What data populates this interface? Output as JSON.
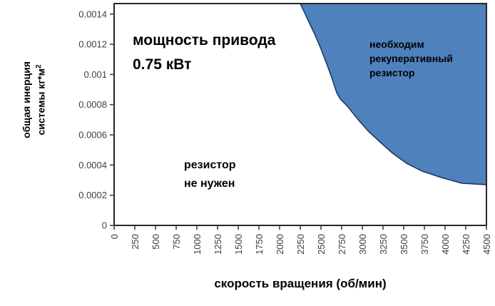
{
  "figure": {
    "title_line1": "мощность привода",
    "title_line2": "0.75 кВт",
    "region_resistor": {
      "line1": "необходим",
      "line2": "рекуперативный",
      "line3": "резистор"
    },
    "region_no_resistor": {
      "line1": "резистор",
      "line2": "не нужен"
    },
    "xlabel": "скорость вращения (об/мин)",
    "ylabel_line1": "общая инерция",
    "ylabel_line2": "системы кг*м",
    "ylabel_sup": "2"
  },
  "colors": {
    "region_fill": "#4f81bd",
    "region_stroke": "#1f3864",
    "frame": "#262626",
    "tick": "#404040",
    "tick_text": "#404040"
  },
  "chart_data": {
    "type": "area",
    "title": "мощность привода 0.75 кВт",
    "xlabel": "скорость вращения (об/мин)",
    "ylabel": "общая инерция системы кг*м^2",
    "xlim": [
      0,
      4500
    ],
    "ylim": [
      0,
      0.00147
    ],
    "x_ticks": [
      0,
      250,
      500,
      750,
      1000,
      1250,
      1500,
      1750,
      2000,
      2250,
      2500,
      2750,
      3000,
      3250,
      3500,
      3750,
      4000,
      4250,
      4500
    ],
    "y_ticks": [
      0,
      0.0002,
      0.0004,
      0.0006,
      0.0008,
      0.001,
      0.0012,
      0.0014
    ],
    "y_tick_labels": [
      "0",
      "0.0002",
      "0.0004",
      "0.0006",
      "0.0008",
      "0.001",
      "0.0012",
      "0.0014"
    ],
    "grid": false,
    "legend": false,
    "regions": [
      {
        "name": "резистор не нужен",
        "position": "below-boundary"
      },
      {
        "name": "необходим рекуперативный резистор",
        "position": "above-boundary",
        "fill": "#4f81bd"
      }
    ],
    "series": [
      {
        "name": "boundary",
        "x": [
          2250,
          2310,
          2370,
          2430,
          2500,
          2570,
          2630,
          2690,
          2730,
          2820,
          2950,
          3080,
          3220,
          3360,
          3540,
          3720,
          3940,
          4200,
          4500
        ],
        "y": [
          0.00147,
          0.0014,
          0.00133,
          0.00126,
          0.00117,
          0.00107,
          0.00098,
          0.00088,
          0.00084,
          0.00079,
          0.0007,
          0.00062,
          0.00055,
          0.00048,
          0.00041,
          0.00036,
          0.00032,
          0.00028,
          0.00027
        ]
      }
    ]
  }
}
